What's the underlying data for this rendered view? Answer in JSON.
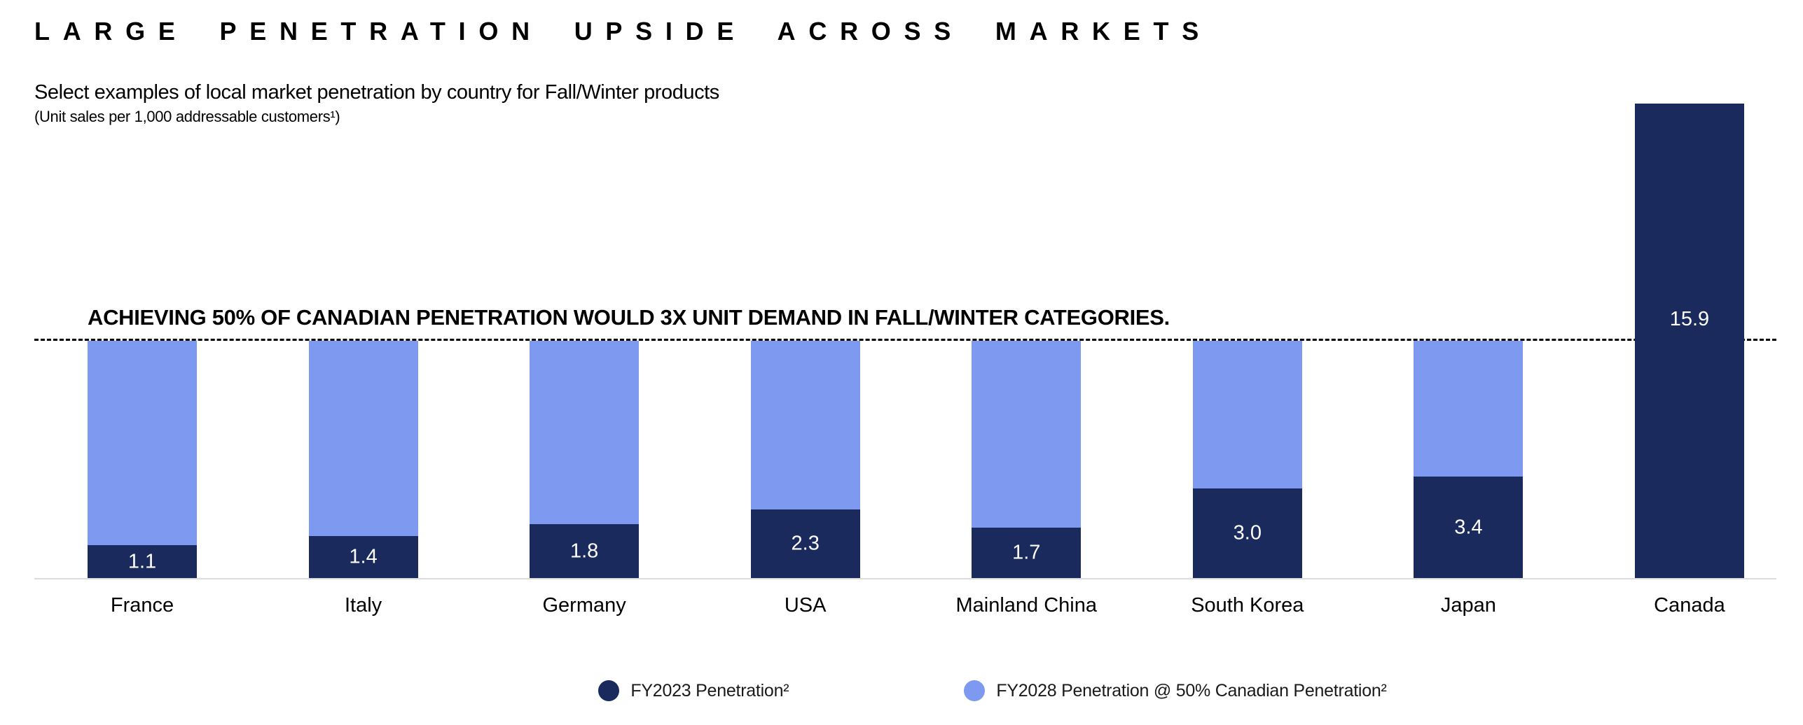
{
  "page": {
    "title": "LARGE PENETRATION UPSIDE ACROSS MARKETS",
    "subtitle": "Select examples of local market penetration by country for Fall/Winter products",
    "unit_note": "(Unit sales per 1,000 addressable customers¹)"
  },
  "annotation": "ACHIEVING 50% OF CANADIAN PENETRATION WOULD 3X UNIT DEMAND IN FALL/WINTER CATEGORIES.",
  "colors": {
    "fy2023_dark_navy": "#1B2A5C",
    "fy2028_light_blue": "#7D99F0",
    "axis": "#DCDCDC",
    "reference_line": "#000000"
  },
  "chart_data": {
    "type": "bar",
    "stacked": true,
    "title": "Select examples of local market penetration by country for Fall/Winter products",
    "ylabel": "Unit sales per 1,000 addressable customers",
    "categories": [
      "France",
      "Italy",
      "Germany",
      "USA",
      "Mainland China",
      "South Korea",
      "Japan",
      "Canada"
    ],
    "series": [
      {
        "name": "FY2023 Penetration²",
        "values": [
          1.1,
          1.4,
          1.8,
          2.3,
          1.7,
          3.0,
          3.4,
          15.9
        ]
      },
      {
        "name": "FY2028 Penetration @ 50% Canadian Penetration²",
        "values": [
          6.85,
          6.55,
          6.15,
          5.65,
          6.25,
          4.95,
          4.55,
          0
        ]
      }
    ],
    "value_labels": [
      "1.1",
      "1.4",
      "1.8",
      "2.3",
      "1.7",
      "3.0",
      "3.4",
      "15.9"
    ],
    "ymax": 15.9,
    "reference_line": {
      "value": 7.95,
      "style": "dashed",
      "meaning": "50% of Canadian penetration"
    },
    "grid": false,
    "legend_position": "bottom",
    "legend": [
      {
        "label": "FY2023 Penetration²",
        "color": "#1B2A5C"
      },
      {
        "label": "FY2028 Penetration @ 50% Canadian Penetration²",
        "color": "#7D99F0"
      }
    ]
  }
}
